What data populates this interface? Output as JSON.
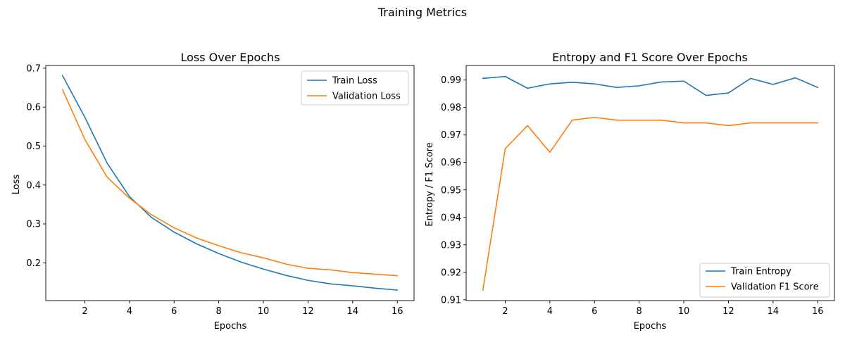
{
  "figure": {
    "title": "Training Metrics"
  },
  "chart_data": [
    {
      "type": "line",
      "title": "Loss Over Epochs",
      "xlabel": "Epochs",
      "ylabel": "Loss",
      "xlim": [
        0.25,
        16.75
      ],
      "ylim": [
        0.103,
        0.707
      ],
      "xticks": [
        2,
        4,
        6,
        8,
        10,
        12,
        14,
        16
      ],
      "yticks": [
        0.2,
        0.3,
        0.4,
        0.5,
        0.6,
        0.7
      ],
      "ytick_labels": [
        "0.2",
        "0.3",
        "0.4",
        "0.5",
        "0.6",
        "0.7"
      ],
      "grid": false,
      "legend": "top-right",
      "x": [
        1,
        2,
        3,
        4,
        5,
        6,
        7,
        8,
        9,
        10,
        11,
        12,
        13,
        14,
        15,
        16
      ],
      "series": [
        {
          "name": "Train Loss",
          "color": "#1f77b4",
          "values": [
            0.681,
            0.574,
            0.456,
            0.37,
            0.316,
            0.279,
            0.249,
            0.224,
            0.202,
            0.184,
            0.168,
            0.155,
            0.146,
            0.141,
            0.135,
            0.13
          ]
        },
        {
          "name": "Validation Loss",
          "color": "#ff7f0e",
          "values": [
            0.645,
            0.517,
            0.42,
            0.366,
            0.323,
            0.29,
            0.264,
            0.244,
            0.226,
            0.213,
            0.197,
            0.186,
            0.182,
            0.175,
            0.171,
            0.167
          ]
        }
      ]
    },
    {
      "type": "line",
      "title": "Entropy and F1 Score Over Epochs",
      "xlabel": "Epochs",
      "ylabel": "Entropy / F1 Score",
      "xlim": [
        0.25,
        16.75
      ],
      "ylim": [
        0.9097,
        0.9953
      ],
      "xticks": [
        2,
        4,
        6,
        8,
        10,
        12,
        14,
        16
      ],
      "yticks": [
        0.91,
        0.92,
        0.93,
        0.94,
        0.95,
        0.96,
        0.97,
        0.98,
        0.99
      ],
      "ytick_labels": [
        "0.91",
        "0.92",
        "0.93",
        "0.94",
        "0.95",
        "0.96",
        "0.97",
        "0.98",
        "0.99"
      ],
      "grid": false,
      "legend": "bottom-right",
      "x": [
        1,
        2,
        3,
        4,
        5,
        6,
        7,
        8,
        9,
        10,
        11,
        12,
        13,
        14,
        15,
        16
      ],
      "series": [
        {
          "name": "Train Entropy",
          "color": "#1f77b4",
          "values": [
            0.9906,
            0.9913,
            0.987,
            0.9886,
            0.9892,
            0.9886,
            0.9873,
            0.9879,
            0.9893,
            0.9896,
            0.9844,
            0.9853,
            0.9906,
            0.9884,
            0.9908,
            0.9873
          ]
        },
        {
          "name": "Validation F1 Score",
          "color": "#ff7f0e",
          "values": [
            0.9135,
            0.965,
            0.9734,
            0.9637,
            0.9754,
            0.9764,
            0.9754,
            0.9754,
            0.9754,
            0.9744,
            0.9744,
            0.9734,
            0.9744,
            0.9744,
            0.9744,
            0.9744
          ]
        }
      ]
    }
  ]
}
